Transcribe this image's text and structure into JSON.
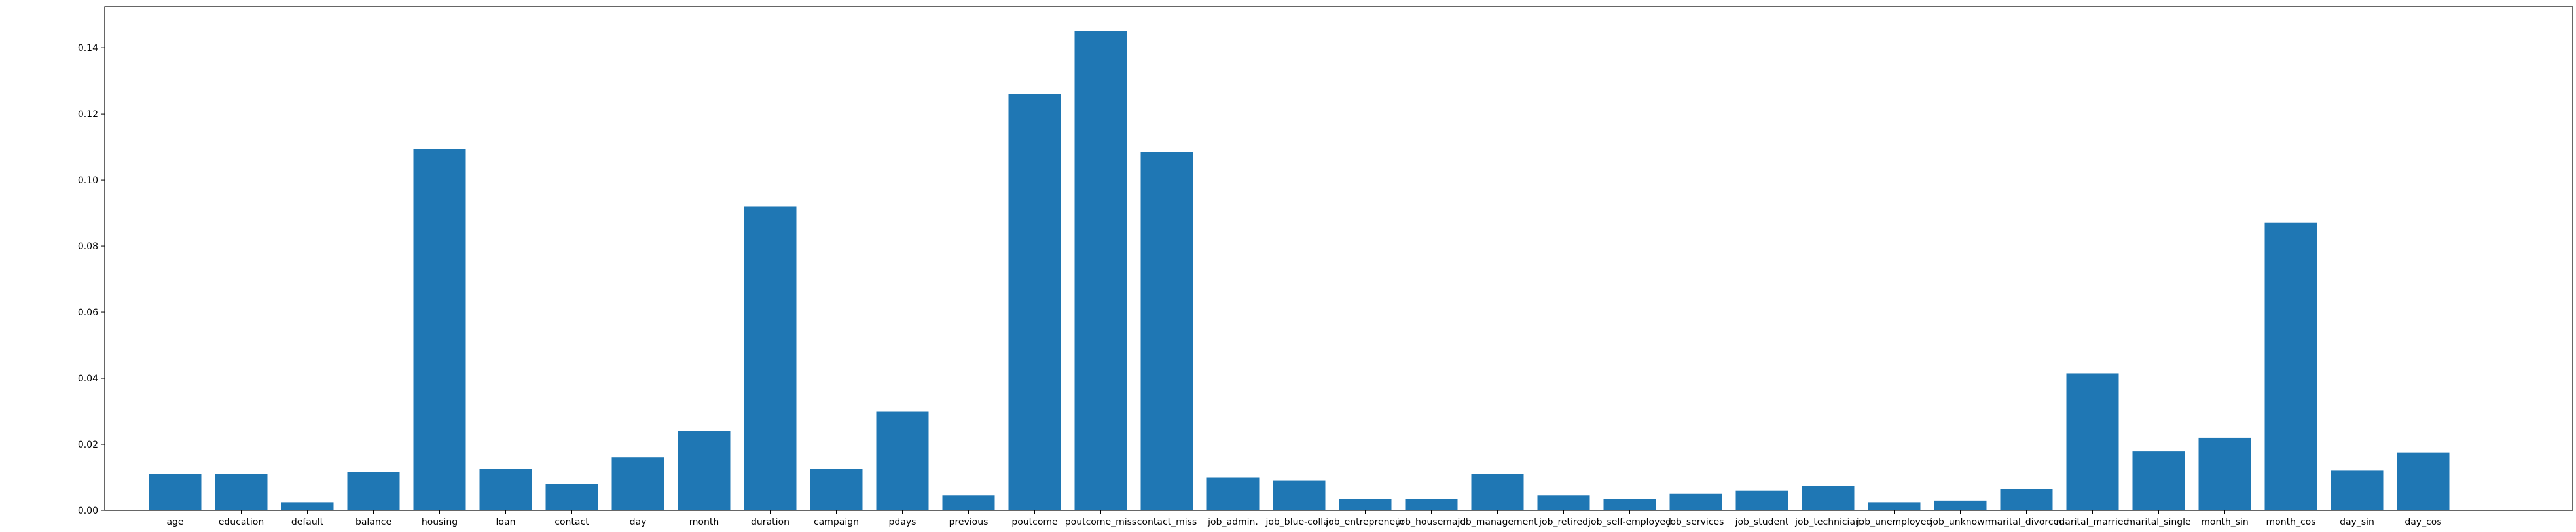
{
  "chart_data": {
    "type": "bar",
    "title": "",
    "xlabel": "",
    "ylabel": "",
    "ylim": [
      0,
      0.1525
    ],
    "yticks": [
      "0.00",
      "0.02",
      "0.04",
      "0.06",
      "0.08",
      "0.10",
      "0.12",
      "0.14"
    ],
    "grid": false,
    "bar_color": "#1f77b4",
    "categories": [
      "age",
      "education",
      "default",
      "balance",
      "housing",
      "loan",
      "contact",
      "day",
      "month",
      "duration",
      "campaign",
      "pdays",
      "previous",
      "poutcome",
      "poutcome_miss",
      "contact_miss",
      "job_admin.",
      "job_blue-collar",
      "job_entrepreneur",
      "job_housemaid",
      "job_management",
      "job_retired",
      "job_self-employed",
      "job_services",
      "job_student",
      "job_technician",
      "job_unemployed",
      "job_unknown",
      "marital_divorced",
      "marital_married",
      "marital_single",
      "month_sin",
      "month_cos",
      "day_sin",
      "day_cos"
    ],
    "values": [
      0.011,
      0.011,
      0.0025,
      0.0115,
      0.1095,
      0.0125,
      0.008,
      0.016,
      0.024,
      0.092,
      0.0125,
      0.03,
      0.0045,
      0.126,
      0.145,
      0.1085,
      0.01,
      0.009,
      0.0035,
      0.0035,
      0.011,
      0.0045,
      0.0035,
      0.005,
      0.006,
      0.0075,
      0.0025,
      0.003,
      0.0065,
      0.0415,
      0.018,
      0.022,
      0.087,
      0.012,
      0.0175
    ]
  }
}
